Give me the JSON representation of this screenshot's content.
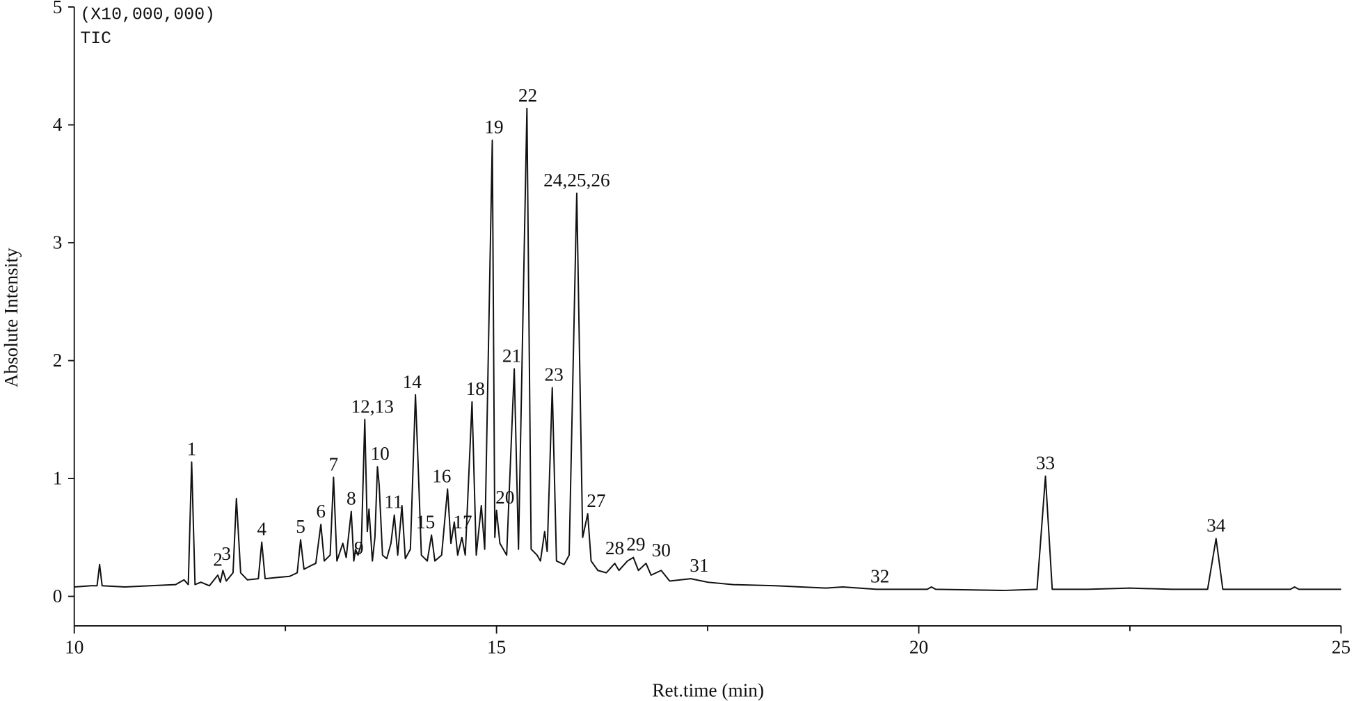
{
  "chart_data": {
    "type": "line",
    "multiplier_label": "(X10,000,000)",
    "trace_label": "TIC",
    "x_label": "Ret.time (min)",
    "y_label": "Absolute Intensity",
    "xlim": [
      10,
      25
    ],
    "ylim": [
      -0.25,
      5
    ],
    "xticks": [
      10,
      15,
      20,
      25
    ],
    "xminor": [
      12.5,
      17.5,
      22.5
    ],
    "yticks": [
      0,
      1,
      2,
      3,
      4,
      5
    ],
    "color": "#111111",
    "x": [
      10.0,
      10.2,
      10.27,
      10.3,
      10.33,
      10.6,
      10.9,
      11.2,
      11.3,
      11.35,
      11.39,
      11.43,
      11.5,
      11.6,
      11.7,
      11.73,
      11.76,
      11.8,
      11.88,
      11.92,
      11.97,
      12.05,
      12.18,
      12.22,
      12.26,
      12.4,
      12.55,
      12.64,
      12.68,
      12.72,
      12.8,
      12.86,
      12.92,
      12.96,
      13.03,
      13.07,
      13.11,
      13.18,
      13.22,
      13.28,
      13.31,
      13.33,
      13.36,
      13.4,
      13.44,
      13.47,
      13.49,
      13.53,
      13.56,
      13.59,
      13.61,
      13.65,
      13.7,
      13.75,
      13.79,
      13.83,
      13.88,
      13.92,
      13.98,
      14.04,
      14.07,
      14.11,
      14.18,
      14.23,
      14.27,
      14.35,
      14.42,
      14.46,
      14.5,
      14.54,
      14.59,
      14.63,
      14.71,
      14.76,
      14.82,
      14.86,
      14.95,
      14.98,
      15.0,
      15.04,
      15.12,
      15.21,
      15.26,
      15.36,
      15.41,
      15.48,
      15.52,
      15.57,
      15.6,
      15.66,
      15.71,
      15.8,
      15.86,
      15.95,
      16.02,
      16.08,
      16.12,
      16.2,
      16.3,
      16.4,
      16.45,
      16.55,
      16.62,
      16.68,
      16.77,
      16.83,
      16.95,
      17.05,
      17.3,
      17.5,
      17.8,
      18.3,
      18.9,
      19.1,
      19.5,
      20.1,
      20.15,
      20.2,
      21.0,
      21.4,
      21.5,
      21.58,
      22.0,
      22.5,
      23.0,
      23.42,
      23.52,
      23.6,
      24.4,
      24.45,
      24.5,
      25.0
    ],
    "values": [
      0.08,
      0.09,
      0.09,
      0.27,
      0.09,
      0.08,
      0.09,
      0.1,
      0.14,
      0.1,
      1.14,
      0.1,
      0.12,
      0.09,
      0.18,
      0.12,
      0.22,
      0.13,
      0.2,
      0.83,
      0.2,
      0.14,
      0.15,
      0.46,
      0.15,
      0.16,
      0.17,
      0.2,
      0.48,
      0.23,
      0.26,
      0.28,
      0.61,
      0.3,
      0.35,
      1.01,
      0.3,
      0.45,
      0.33,
      0.72,
      0.3,
      0.4,
      0.35,
      0.45,
      1.5,
      0.55,
      0.74,
      0.3,
      0.5,
      1.1,
      0.95,
      0.35,
      0.32,
      0.45,
      0.69,
      0.35,
      0.77,
      0.32,
      0.4,
      1.71,
      1.15,
      0.35,
      0.3,
      0.52,
      0.3,
      0.35,
      0.91,
      0.45,
      0.63,
      0.35,
      0.5,
      0.35,
      1.65,
      0.35,
      0.77,
      0.4,
      3.87,
      0.5,
      0.73,
      0.45,
      0.35,
      1.93,
      0.4,
      4.14,
      0.4,
      0.35,
      0.3,
      0.55,
      0.38,
      1.77,
      0.3,
      0.27,
      0.35,
      3.42,
      0.5,
      0.7,
      0.3,
      0.22,
      0.2,
      0.28,
      0.22,
      0.3,
      0.33,
      0.22,
      0.28,
      0.18,
      0.22,
      0.13,
      0.15,
      0.12,
      0.1,
      0.09,
      0.07,
      0.08,
      0.06,
      0.06,
      0.08,
      0.06,
      0.05,
      0.06,
      1.02,
      0.06,
      0.06,
      0.07,
      0.06,
      0.06,
      0.49,
      0.06,
      0.06,
      0.08,
      0.06,
      0.06
    ],
    "peaks": [
      {
        "label": "1",
        "x": 11.39,
        "y": 1.14
      },
      {
        "label": "2",
        "x": 11.7,
        "y": 0.2
      },
      {
        "label": "3",
        "x": 11.8,
        "y": 0.25
      },
      {
        "label": "4",
        "x": 12.22,
        "y": 0.46
      },
      {
        "label": "5",
        "x": 12.68,
        "y": 0.48
      },
      {
        "label": "6",
        "x": 12.92,
        "y": 0.61
      },
      {
        "label": "7",
        "x": 13.07,
        "y": 1.01
      },
      {
        "label": "8",
        "x": 13.28,
        "y": 0.72
      },
      {
        "label": "9",
        "x": 13.37,
        "y": 0.3
      },
      {
        "label": "12,13",
        "x": 13.53,
        "y": 1.5
      },
      {
        "label": "10",
        "x": 13.62,
        "y": 1.1
      },
      {
        "label": "11",
        "x": 13.78,
        "y": 0.69
      },
      {
        "label": "14",
        "x": 14.0,
        "y": 1.71
      },
      {
        "label": "15",
        "x": 14.16,
        "y": 0.52
      },
      {
        "label": "16",
        "x": 14.35,
        "y": 0.91
      },
      {
        "label": "17",
        "x": 14.6,
        "y": 0.52
      },
      {
        "label": "18",
        "x": 14.75,
        "y": 1.65
      },
      {
        "label": "19",
        "x": 14.97,
        "y": 3.87
      },
      {
        "label": "20",
        "x": 15.1,
        "y": 0.73
      },
      {
        "label": "21",
        "x": 15.18,
        "y": 1.93
      },
      {
        "label": "22",
        "x": 15.37,
        "y": 4.14
      },
      {
        "label": "23",
        "x": 15.68,
        "y": 1.77
      },
      {
        "label": "24,25,26",
        "x": 15.95,
        "y": 3.42
      },
      {
        "label": "27",
        "x": 16.18,
        "y": 0.7
      },
      {
        "label": "28",
        "x": 16.4,
        "y": 0.3
      },
      {
        "label": "29",
        "x": 16.65,
        "y": 0.33
      },
      {
        "label": "30",
        "x": 16.95,
        "y": 0.28
      },
      {
        "label": "31",
        "x": 17.4,
        "y": 0.15
      },
      {
        "label": "32",
        "x": 19.54,
        "y": 0.06
      },
      {
        "label": "33",
        "x": 21.5,
        "y": 1.02
      },
      {
        "label": "34",
        "x": 23.52,
        "y": 0.49
      }
    ]
  }
}
